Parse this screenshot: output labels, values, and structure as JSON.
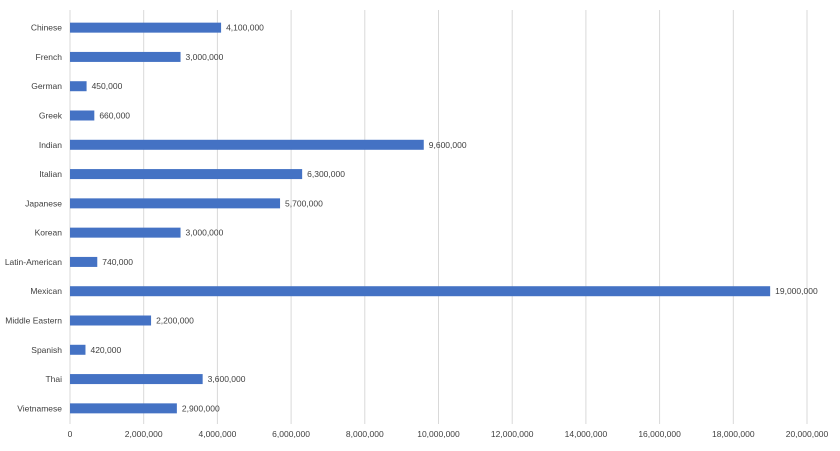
{
  "chart_data": {
    "type": "bar",
    "orientation": "horizontal",
    "categories": [
      "Chinese",
      "French",
      "German",
      "Greek",
      "Indian",
      "Italian",
      "Japanese",
      "Korean",
      "Latin-American",
      "Mexican",
      "Middle Eastern",
      "Spanish",
      "Thai",
      "Vietnamese"
    ],
    "values": [
      4100000,
      3000000,
      450000,
      660000,
      9600000,
      6300000,
      5700000,
      3000000,
      740000,
      19000000,
      2200000,
      420000,
      3600000,
      2900000
    ],
    "data_labels": [
      "4,100,000",
      "3,000,000",
      "450,000",
      "660,000",
      "9,600,000",
      "6,300,000",
      "5,700,000",
      "3,000,000",
      "740,000",
      "19,000,000",
      "2,200,000",
      "420,000",
      "3,600,000",
      "2,900,000"
    ],
    "x_ticks": [
      "0",
      "2,000,000",
      "4,000,000",
      "6,000,000",
      "8,000,000",
      "10,000,000",
      "12,000,000",
      "14,000,000",
      "16,000,000",
      "18,000,000",
      "20,000,000"
    ],
    "xlim": [
      0,
      20000000
    ],
    "title": "",
    "xlabel": "",
    "ylabel": "",
    "grid": "vertical",
    "legend": "none",
    "bar_color": "#4472c4",
    "grid_color": "#d9d9d9"
  }
}
